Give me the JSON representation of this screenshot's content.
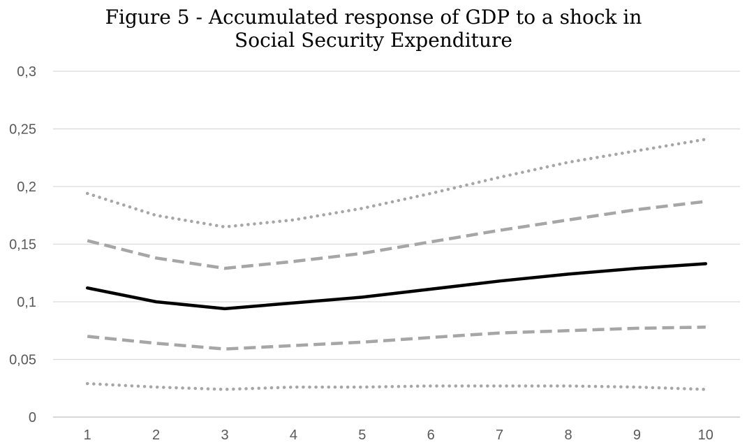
{
  "chart_data": {
    "type": "line",
    "title_lines": [
      "Figure 5 - Accumulated response of GDP to a shock in",
      "Social Security Expenditure"
    ],
    "xlabel": "",
    "ylabel": "",
    "categories": [
      "1",
      "2",
      "3",
      "4",
      "5",
      "6",
      "7",
      "8",
      "9",
      "10"
    ],
    "x": [
      1,
      2,
      3,
      4,
      5,
      6,
      7,
      8,
      9,
      10
    ],
    "ylim": [
      0,
      0.3
    ],
    "yticks": [
      0,
      0.05,
      0.1,
      0.15,
      0.2,
      0.25,
      0.3
    ],
    "ytick_labels": [
      "0",
      "0,05",
      "0,1",
      "0,15",
      "0,2",
      "0,25",
      "0,3"
    ],
    "grid": true,
    "legend": "none",
    "series": [
      {
        "style": "dotted",
        "color": "#a6a6a6",
        "values": [
          0.194,
          0.175,
          0.165,
          0.171,
          0.181,
          0.194,
          0.208,
          0.221,
          0.231,
          0.241
        ]
      },
      {
        "style": "dashed",
        "color": "#a6a6a6",
        "values": [
          0.153,
          0.138,
          0.129,
          0.135,
          0.142,
          0.152,
          0.162,
          0.171,
          0.18,
          0.187
        ]
      },
      {
        "style": "solid",
        "color": "#000000",
        "values": [
          0.112,
          0.1,
          0.094,
          0.099,
          0.104,
          0.111,
          0.118,
          0.124,
          0.129,
          0.133
        ]
      },
      {
        "style": "dashed",
        "color": "#a6a6a6",
        "values": [
          0.07,
          0.064,
          0.059,
          0.062,
          0.065,
          0.069,
          0.073,
          0.075,
          0.077,
          0.078
        ]
      },
      {
        "style": "dotted",
        "color": "#a6a6a6",
        "values": [
          0.029,
          0.026,
          0.024,
          0.026,
          0.026,
          0.027,
          0.027,
          0.027,
          0.026,
          0.024
        ]
      }
    ]
  }
}
